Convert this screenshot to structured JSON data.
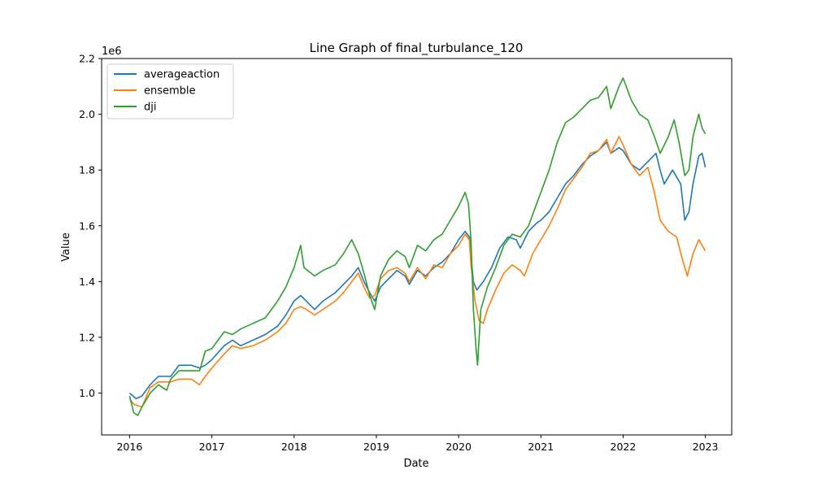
{
  "chart_data": {
    "type": "line",
    "title": "Line Graph of final_turbulance_120",
    "xlabel": "Date",
    "ylabel": "Value",
    "y_multiplier_label": "1e6",
    "xlim": [
      2015.66,
      2023.32
    ],
    "ylim": [
      0.85,
      2.2
    ],
    "x_ticks": [
      2016,
      2017,
      2018,
      2019,
      2020,
      2021,
      2022,
      2023
    ],
    "x_tick_labels": [
      "2016",
      "2017",
      "2018",
      "2019",
      "2020",
      "2021",
      "2022",
      "2023"
    ],
    "y_ticks": [
      1.0,
      1.2,
      1.4,
      1.6,
      1.8,
      2.0,
      2.2
    ],
    "y_tick_labels": [
      "1.0",
      "1.2",
      "1.4",
      "1.6",
      "1.8",
      "2.0",
      "2.2"
    ],
    "grid": false,
    "legend_position": "top-left",
    "series": [
      {
        "name": "averageaction",
        "color": "#1f77b4",
        "points": [
          [
            2016.0,
            1.0
          ],
          [
            2016.08,
            0.98
          ],
          [
            2016.15,
            0.99
          ],
          [
            2016.25,
            1.03
          ],
          [
            2016.35,
            1.06
          ],
          [
            2016.5,
            1.06
          ],
          [
            2016.6,
            1.1
          ],
          [
            2016.75,
            1.1
          ],
          [
            2016.85,
            1.09
          ],
          [
            2016.92,
            1.1
          ],
          [
            2017.0,
            1.12
          ],
          [
            2017.15,
            1.17
          ],
          [
            2017.25,
            1.19
          ],
          [
            2017.35,
            1.17
          ],
          [
            2017.5,
            1.19
          ],
          [
            2017.65,
            1.21
          ],
          [
            2017.8,
            1.24
          ],
          [
            2017.9,
            1.28
          ],
          [
            2018.0,
            1.33
          ],
          [
            2018.08,
            1.35
          ],
          [
            2018.15,
            1.33
          ],
          [
            2018.25,
            1.3
          ],
          [
            2018.35,
            1.33
          ],
          [
            2018.5,
            1.36
          ],
          [
            2018.6,
            1.39
          ],
          [
            2018.7,
            1.42
          ],
          [
            2018.78,
            1.45
          ],
          [
            2018.85,
            1.4
          ],
          [
            2018.92,
            1.36
          ],
          [
            2018.98,
            1.33
          ],
          [
            2019.05,
            1.38
          ],
          [
            2019.15,
            1.41
          ],
          [
            2019.25,
            1.44
          ],
          [
            2019.35,
            1.42
          ],
          [
            2019.4,
            1.39
          ],
          [
            2019.5,
            1.44
          ],
          [
            2019.6,
            1.42
          ],
          [
            2019.7,
            1.45
          ],
          [
            2019.8,
            1.47
          ],
          [
            2019.9,
            1.5
          ],
          [
            2020.0,
            1.55
          ],
          [
            2020.08,
            1.58
          ],
          [
            2020.13,
            1.56
          ],
          [
            2020.15,
            1.49
          ],
          [
            2020.18,
            1.4
          ],
          [
            2020.22,
            1.37
          ],
          [
            2020.3,
            1.4
          ],
          [
            2020.4,
            1.45
          ],
          [
            2020.5,
            1.52
          ],
          [
            2020.6,
            1.56
          ],
          [
            2020.7,
            1.55
          ],
          [
            2020.75,
            1.52
          ],
          [
            2020.85,
            1.58
          ],
          [
            2020.95,
            1.61
          ],
          [
            2021.0,
            1.62
          ],
          [
            2021.1,
            1.65
          ],
          [
            2021.2,
            1.7
          ],
          [
            2021.3,
            1.75
          ],
          [
            2021.4,
            1.78
          ],
          [
            2021.5,
            1.82
          ],
          [
            2021.6,
            1.85
          ],
          [
            2021.7,
            1.87
          ],
          [
            2021.8,
            1.9
          ],
          [
            2021.85,
            1.86
          ],
          [
            2021.95,
            1.88
          ],
          [
            2022.0,
            1.87
          ],
          [
            2022.1,
            1.82
          ],
          [
            2022.2,
            1.8
          ],
          [
            2022.3,
            1.83
          ],
          [
            2022.4,
            1.86
          ],
          [
            2022.45,
            1.8
          ],
          [
            2022.5,
            1.75
          ],
          [
            2022.6,
            1.8
          ],
          [
            2022.7,
            1.75
          ],
          [
            2022.75,
            1.62
          ],
          [
            2022.8,
            1.65
          ],
          [
            2022.85,
            1.75
          ],
          [
            2022.92,
            1.85
          ],
          [
            2022.96,
            1.86
          ],
          [
            2023.0,
            1.81
          ]
        ]
      },
      {
        "name": "ensemble",
        "color": "#ff7f0e",
        "points": [
          [
            2016.0,
            0.98
          ],
          [
            2016.05,
            0.96
          ],
          [
            2016.15,
            0.95
          ],
          [
            2016.25,
            1.02
          ],
          [
            2016.35,
            1.04
          ],
          [
            2016.5,
            1.04
          ],
          [
            2016.6,
            1.05
          ],
          [
            2016.75,
            1.05
          ],
          [
            2016.85,
            1.03
          ],
          [
            2016.92,
            1.06
          ],
          [
            2017.0,
            1.09
          ],
          [
            2017.15,
            1.14
          ],
          [
            2017.25,
            1.17
          ],
          [
            2017.35,
            1.16
          ],
          [
            2017.5,
            1.17
          ],
          [
            2017.65,
            1.19
          ],
          [
            2017.8,
            1.22
          ],
          [
            2017.9,
            1.25
          ],
          [
            2018.0,
            1.3
          ],
          [
            2018.08,
            1.31
          ],
          [
            2018.15,
            1.3
          ],
          [
            2018.25,
            1.28
          ],
          [
            2018.35,
            1.3
          ],
          [
            2018.5,
            1.33
          ],
          [
            2018.6,
            1.36
          ],
          [
            2018.7,
            1.4
          ],
          [
            2018.78,
            1.43
          ],
          [
            2018.85,
            1.38
          ],
          [
            2018.92,
            1.34
          ],
          [
            2018.98,
            1.35
          ],
          [
            2019.05,
            1.41
          ],
          [
            2019.15,
            1.44
          ],
          [
            2019.25,
            1.45
          ],
          [
            2019.35,
            1.43
          ],
          [
            2019.4,
            1.4
          ],
          [
            2019.5,
            1.45
          ],
          [
            2019.6,
            1.41
          ],
          [
            2019.7,
            1.46
          ],
          [
            2019.8,
            1.45
          ],
          [
            2019.9,
            1.5
          ],
          [
            2020.0,
            1.53
          ],
          [
            2020.08,
            1.57
          ],
          [
            2020.13,
            1.55
          ],
          [
            2020.15,
            1.46
          ],
          [
            2020.2,
            1.33
          ],
          [
            2020.25,
            1.26
          ],
          [
            2020.3,
            1.25
          ],
          [
            2020.35,
            1.3
          ],
          [
            2020.45,
            1.37
          ],
          [
            2020.55,
            1.43
          ],
          [
            2020.65,
            1.46
          ],
          [
            2020.75,
            1.44
          ],
          [
            2020.8,
            1.42
          ],
          [
            2020.9,
            1.5
          ],
          [
            2021.0,
            1.55
          ],
          [
            2021.1,
            1.6
          ],
          [
            2021.2,
            1.66
          ],
          [
            2021.3,
            1.73
          ],
          [
            2021.4,
            1.77
          ],
          [
            2021.5,
            1.81
          ],
          [
            2021.6,
            1.86
          ],
          [
            2021.7,
            1.87
          ],
          [
            2021.8,
            1.91
          ],
          [
            2021.85,
            1.86
          ],
          [
            2021.95,
            1.92
          ],
          [
            2022.0,
            1.89
          ],
          [
            2022.1,
            1.82
          ],
          [
            2022.2,
            1.78
          ],
          [
            2022.3,
            1.81
          ],
          [
            2022.38,
            1.72
          ],
          [
            2022.45,
            1.62
          ],
          [
            2022.55,
            1.58
          ],
          [
            2022.65,
            1.56
          ],
          [
            2022.72,
            1.48
          ],
          [
            2022.78,
            1.42
          ],
          [
            2022.85,
            1.5
          ],
          [
            2022.92,
            1.55
          ],
          [
            2022.96,
            1.53
          ],
          [
            2023.0,
            1.51
          ]
        ]
      },
      {
        "name": "dji",
        "color": "#2ca02c",
        "points": [
          [
            2016.0,
            0.99
          ],
          [
            2016.05,
            0.93
          ],
          [
            2016.1,
            0.92
          ],
          [
            2016.15,
            0.95
          ],
          [
            2016.25,
            1.0
          ],
          [
            2016.35,
            1.03
          ],
          [
            2016.45,
            1.01
          ],
          [
            2016.5,
            1.05
          ],
          [
            2016.6,
            1.08
          ],
          [
            2016.75,
            1.08
          ],
          [
            2016.85,
            1.08
          ],
          [
            2016.92,
            1.15
          ],
          [
            2017.0,
            1.16
          ],
          [
            2017.15,
            1.22
          ],
          [
            2017.25,
            1.21
          ],
          [
            2017.35,
            1.23
          ],
          [
            2017.5,
            1.25
          ],
          [
            2017.65,
            1.27
          ],
          [
            2017.8,
            1.33
          ],
          [
            2017.9,
            1.38
          ],
          [
            2018.0,
            1.45
          ],
          [
            2018.08,
            1.53
          ],
          [
            2018.12,
            1.45
          ],
          [
            2018.25,
            1.42
          ],
          [
            2018.35,
            1.44
          ],
          [
            2018.5,
            1.46
          ],
          [
            2018.6,
            1.5
          ],
          [
            2018.7,
            1.55
          ],
          [
            2018.78,
            1.5
          ],
          [
            2018.85,
            1.43
          ],
          [
            2018.92,
            1.35
          ],
          [
            2018.98,
            1.3
          ],
          [
            2019.05,
            1.42
          ],
          [
            2019.15,
            1.48
          ],
          [
            2019.25,
            1.51
          ],
          [
            2019.35,
            1.49
          ],
          [
            2019.4,
            1.45
          ],
          [
            2019.5,
            1.53
          ],
          [
            2019.6,
            1.51
          ],
          [
            2019.7,
            1.55
          ],
          [
            2019.8,
            1.57
          ],
          [
            2019.9,
            1.62
          ],
          [
            2020.0,
            1.67
          ],
          [
            2020.08,
            1.72
          ],
          [
            2020.12,
            1.68
          ],
          [
            2020.15,
            1.55
          ],
          [
            2020.18,
            1.3
          ],
          [
            2020.21,
            1.17
          ],
          [
            2020.23,
            1.1
          ],
          [
            2020.27,
            1.3
          ],
          [
            2020.35,
            1.38
          ],
          [
            2020.45,
            1.45
          ],
          [
            2020.55,
            1.53
          ],
          [
            2020.65,
            1.57
          ],
          [
            2020.75,
            1.56
          ],
          [
            2020.85,
            1.6
          ],
          [
            2020.95,
            1.68
          ],
          [
            2021.0,
            1.72
          ],
          [
            2021.1,
            1.8
          ],
          [
            2021.2,
            1.9
          ],
          [
            2021.3,
            1.97
          ],
          [
            2021.4,
            1.99
          ],
          [
            2021.5,
            2.02
          ],
          [
            2021.6,
            2.05
          ],
          [
            2021.7,
            2.06
          ],
          [
            2021.8,
            2.1
          ],
          [
            2021.85,
            2.02
          ],
          [
            2021.95,
            2.1
          ],
          [
            2022.0,
            2.13
          ],
          [
            2022.1,
            2.05
          ],
          [
            2022.2,
            2.0
          ],
          [
            2022.3,
            1.98
          ],
          [
            2022.38,
            1.92
          ],
          [
            2022.45,
            1.86
          ],
          [
            2022.55,
            1.92
          ],
          [
            2022.62,
            1.98
          ],
          [
            2022.68,
            1.9
          ],
          [
            2022.75,
            1.78
          ],
          [
            2022.8,
            1.8
          ],
          [
            2022.85,
            1.92
          ],
          [
            2022.92,
            2.0
          ],
          [
            2022.96,
            1.95
          ],
          [
            2023.0,
            1.93
          ]
        ]
      }
    ]
  }
}
